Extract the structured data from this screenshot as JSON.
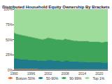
{
  "chart_data": {
    "type": "area",
    "title": "Distributed Household Equity Ownership By Brackets",
    "stacked": true,
    "categories": [
      "1990",
      null,
      null,
      null,
      null,
      null,
      "1996",
      null,
      null,
      null,
      null,
      null,
      "2002",
      null,
      null,
      null,
      null,
      null,
      "2008",
      null,
      null,
      null,
      null,
      null,
      "2014",
      null,
      null,
      null,
      null,
      null,
      "2020",
      null,
      null,
      null
    ],
    "series": [
      {
        "name": "Bottom 50%",
        "color": "#e8743b",
        "values": [
          1.5,
          1.5,
          1.5,
          1.5,
          1.5,
          1.5,
          1.5,
          1.5,
          1.5,
          1,
          1,
          1,
          1,
          1,
          1,
          1,
          1,
          1,
          1,
          1,
          1,
          1,
          1,
          1,
          1,
          1,
          1,
          1,
          1,
          1,
          1,
          1,
          1,
          1
        ]
      },
      {
        "name": "50-90%",
        "color": "#1f7a8c",
        "values": [
          17,
          17,
          16.5,
          16,
          16,
          15.5,
          15,
          15,
          14.5,
          14,
          14,
          14.5,
          15,
          15,
          14.5,
          14,
          14,
          13.5,
          14,
          14,
          13.5,
          13,
          13,
          12.5,
          12.5,
          12.5,
          12,
          12,
          12,
          12,
          12,
          11.5,
          11.5,
          11.5
        ]
      },
      {
        "name": "90-99%",
        "color": "#3da45a",
        "values": [
          42.5,
          40.5,
          40,
          39.5,
          38.5,
          38,
          37.5,
          36.5,
          36,
          36,
          35,
          35.5,
          37,
          36,
          35.5,
          35,
          35,
          34.5,
          36,
          35,
          34.5,
          34,
          34,
          33.5,
          33.5,
          33.5,
          34,
          33,
          33,
          33,
          33,
          32.5,
          33.5,
          33.5
        ]
      },
      {
        "name": "Top 1%",
        "color": "#9ddc9a",
        "values": [
          39,
          41,
          42,
          43,
          44,
          45,
          46,
          47,
          48,
          49,
          50,
          49,
          47,
          48,
          49,
          50,
          50,
          51,
          49,
          50,
          51,
          52,
          52,
          53,
          53,
          53,
          53,
          54,
          54,
          54,
          54,
          55,
          54,
          54
        ]
      }
    ],
    "ylim": [
      0,
      100
    ],
    "yticks": [
      {
        "value": 0,
        "label": "0%"
      },
      {
        "value": 25,
        "label": "25%"
      },
      {
        "value": 50,
        "label": "50%"
      },
      {
        "value": 75,
        "label": "75%"
      },
      {
        "value": 100,
        "label": "100%"
      }
    ],
    "grid": false,
    "legend": "bottom"
  }
}
